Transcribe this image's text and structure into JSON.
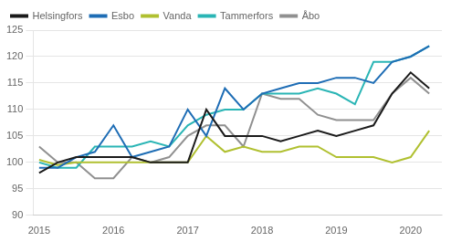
{
  "chart_data": {
    "type": "line",
    "x": [
      2015.0,
      2015.25,
      2015.5,
      2015.75,
      2016.0,
      2016.25,
      2016.5,
      2016.75,
      2017.0,
      2017.25,
      2017.5,
      2017.75,
      2018.0,
      2018.25,
      2018.5,
      2018.75,
      2019.0,
      2019.25,
      2019.5,
      2019.75,
      2020.0,
      2020.25
    ],
    "series": [
      {
        "name": "Helsingfors",
        "color": "#1a1a1a",
        "values": [
          98,
          100,
          101,
          101,
          101,
          101,
          100,
          100,
          100,
          110,
          105,
          105,
          105,
          104,
          105,
          106,
          105,
          106,
          107,
          113,
          117,
          114
        ]
      },
      {
        "name": "Esbo",
        "color": "#1e6db5",
        "values": [
          99,
          99,
          101,
          102,
          107,
          101,
          102,
          103,
          110,
          105,
          114,
          110,
          113,
          114,
          115,
          115,
          116,
          116,
          115,
          119,
          120,
          122
        ]
      },
      {
        "name": "Vanda",
        "color": "#b0c030",
        "values": [
          100.5,
          99.5,
          100,
          100,
          100,
          100,
          100,
          100,
          100,
          105,
          102,
          103,
          102,
          102,
          103,
          103,
          101,
          101,
          101,
          100,
          101,
          106
        ]
      },
      {
        "name": "Tammerfors",
        "color": "#2ab5b5",
        "values": [
          100,
          99,
          99,
          103,
          103,
          103,
          104,
          103,
          107,
          109,
          110,
          110,
          113,
          113,
          113,
          114,
          113,
          111,
          119,
          119,
          120,
          122
        ]
      },
      {
        "name": "Åbo",
        "color": "#909090",
        "values": [
          103,
          100,
          100,
          97,
          97,
          101,
          100,
          101,
          105,
          107,
          107,
          103,
          113,
          112,
          112,
          109,
          108,
          108,
          108,
          113,
          116,
          113
        ]
      }
    ],
    "xlim": [
      2014.92,
      2020.42
    ],
    "xticks": [
      2015,
      2016,
      2017,
      2018,
      2019,
      2020
    ],
    "ylim": [
      90,
      125
    ],
    "yticks": [
      90,
      95,
      100,
      105,
      110,
      115,
      120,
      125
    ],
    "grid": true,
    "legend": "upper left",
    "marker": "none"
  }
}
